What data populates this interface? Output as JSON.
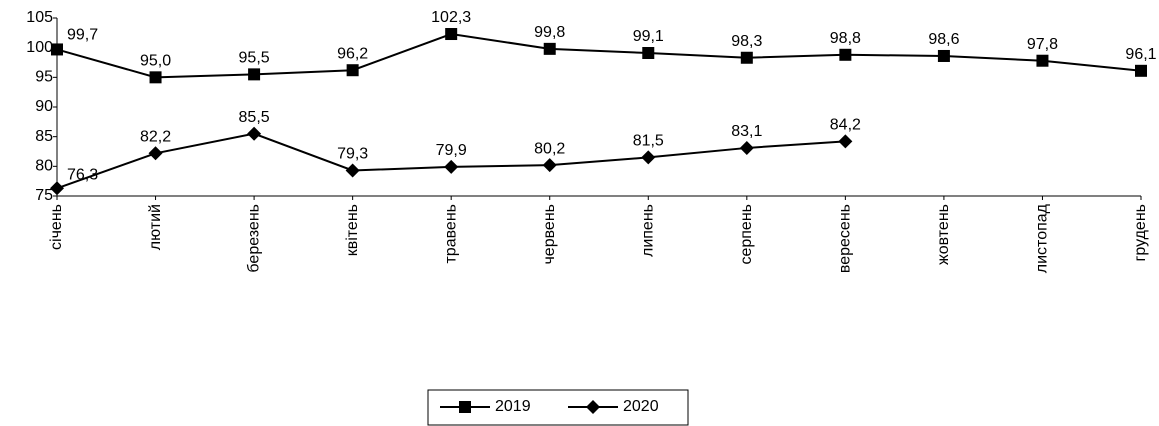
{
  "chart_data": {
    "type": "line",
    "categories": [
      "січень",
      "лютий",
      "березень",
      "квітень",
      "травень",
      "червень",
      "липень",
      "серпень",
      "вересень",
      "жовтень",
      "листопад",
      "грудень"
    ],
    "series": [
      {
        "name": "2019",
        "color": "#000000",
        "marker": "square",
        "values": [
          99.7,
          95.0,
          95.5,
          96.2,
          102.3,
          99.8,
          99.1,
          98.3,
          98.8,
          98.6,
          97.8,
          96.1
        ],
        "value_labels": [
          "99,7",
          "95,0",
          "95,5",
          "96,2",
          "102,3",
          "99,8",
          "99,1",
          "98,3",
          "98,8",
          "98,6",
          "97,8",
          "96,1"
        ]
      },
      {
        "name": "2020",
        "color": "#000000",
        "marker": "diamond",
        "values": [
          76.3,
          82.2,
          85.5,
          79.3,
          79.9,
          80.2,
          81.5,
          83.1,
          84.2,
          null,
          null,
          null
        ],
        "value_labels": [
          "76,3",
          "82,2",
          "85,5",
          "79,3",
          "79,9",
          "80,2",
          "81,5",
          "83,1",
          "84,2",
          null,
          null,
          null
        ]
      }
    ],
    "ylim": [
      75,
      105
    ],
    "yticks": [
      75,
      80,
      85,
      90,
      95,
      100,
      105
    ],
    "grid": false,
    "legend": "bottom"
  }
}
